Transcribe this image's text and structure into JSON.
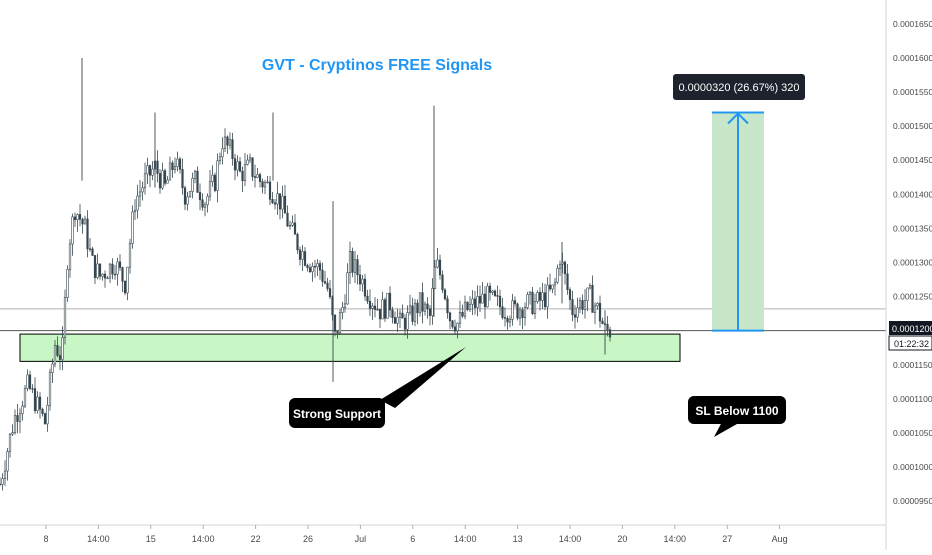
{
  "chart_data": {
    "type": "candlestick",
    "title": "GVT - Cryptinos FREE Signals",
    "title_color": "#2196f3",
    "price_axis_ticks": [
      "0.0000950",
      "0.0001000",
      "0.0001050",
      "0.0001100",
      "0.0001150",
      "0.0001200",
      "0.0001250",
      "0.0001300",
      "0.0001350",
      "0.0001400",
      "0.0001450",
      "0.0001500",
      "0.0001550",
      "0.0001600",
      "0.0001650"
    ],
    "time_axis_ticks": [
      "8",
      "14:00",
      "15",
      "14:00",
      "22",
      "26",
      "Jul",
      "6",
      "14:00",
      "13",
      "14:00",
      "20",
      "14:00",
      "27",
      "Aug"
    ],
    "ylim": [
      9.15e-05,
      0.0001685
    ],
    "current_price": "0.0001200",
    "countdown": "01:22:32",
    "reference_line": 0.0001232,
    "support_zone": {
      "low": 0.0001155,
      "high": 0.0001195,
      "label": "Strong Support",
      "color": "#c8f7c5"
    },
    "stop_loss_label": "SL Below 1100",
    "target": {
      "from": 0.00012,
      "to": 0.000152,
      "label": "0.0000320 (26.67%) 320",
      "color": "#2196f3",
      "fill": "#c8e6c9"
    },
    "candle_color": "#37474f",
    "close_path": [
      [
        0,
        9.75e-05
      ],
      [
        14,
        0.000107
      ],
      [
        28,
        0.000112
      ],
      [
        45,
        0.0001065
      ],
      [
        55,
        0.000118
      ],
      [
        62,
        0.000116
      ],
      [
        68,
        0.000132
      ],
      [
        75,
        0.000138
      ],
      [
        85,
        0.000135
      ],
      [
        92,
        0.00013
      ],
      [
        100,
        0.000128
      ],
      [
        115,
        0.00013
      ],
      [
        125,
        0.000127
      ],
      [
        135,
        0.000139
      ],
      [
        145,
        0.000142
      ],
      [
        155,
        0.000144
      ],
      [
        165,
        0.000141
      ],
      [
        175,
        0.000145
      ],
      [
        185,
        0.00014
      ],
      [
        195,
        0.000142
      ],
      [
        205,
        0.000139
      ],
      [
        215,
        0.000142
      ],
      [
        222,
        0.000148
      ],
      [
        232,
        0.000146
      ],
      [
        240,
        0.000143
      ],
      [
        250,
        0.000144
      ],
      [
        260,
        0.000142
      ],
      [
        270,
        0.000141
      ],
      [
        280,
        0.000139
      ],
      [
        290,
        0.000135
      ],
      [
        300,
        0.000132
      ],
      [
        310,
        0.00013
      ],
      [
        320,
        0.000129
      ],
      [
        328,
        0.000126
      ],
      [
        335,
        0.000119
      ],
      [
        342,
        0.000123
      ],
      [
        350,
        0.00013
      ],
      [
        360,
        0.000128
      ],
      [
        370,
        0.000125
      ],
      [
        380,
        0.000123
      ],
      [
        390,
        0.000124
      ],
      [
        400,
        0.000121
      ],
      [
        410,
        0.000122
      ],
      [
        420,
        0.000124
      ],
      [
        430,
        0.000122
      ],
      [
        436,
        0.00013
      ],
      [
        443,
        0.000127
      ],
      [
        450,
        0.000122
      ],
      [
        458,
        0.000121
      ],
      [
        466,
        0.000123
      ],
      [
        476,
        0.000124
      ],
      [
        486,
        0.000125
      ],
      [
        496,
        0.000124
      ],
      [
        506,
        0.000123
      ],
      [
        516,
        0.000123
      ],
      [
        526,
        0.000124
      ],
      [
        536,
        0.000124
      ],
      [
        546,
        0.000125
      ],
      [
        554,
        0.000126
      ],
      [
        560,
        0.000131
      ],
      [
        566,
        0.000127
      ],
      [
        572,
        0.000123
      ],
      [
        580,
        0.000124
      ],
      [
        590,
        0.000125
      ],
      [
        598,
        0.000123
      ],
      [
        605,
        0.00012
      ],
      [
        611,
        0.00012
      ]
    ],
    "wicks": [
      [
        82,
        0.00016,
        0.000142
      ],
      [
        155,
        0.000152,
        0.000141
      ],
      [
        273,
        0.000152,
        0.000142
      ],
      [
        333,
        0.000139,
        0.0001125
      ],
      [
        434,
        0.000153,
        0.000122
      ],
      [
        562,
        0.000133,
        0.000124
      ],
      [
        605,
        0.000123,
        0.0001165
      ]
    ]
  }
}
